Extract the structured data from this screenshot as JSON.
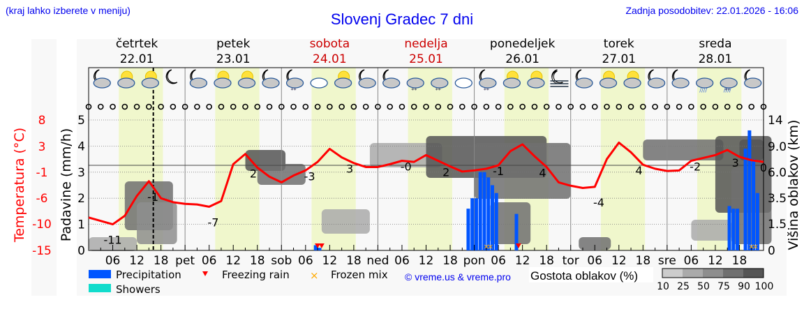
{
  "header": {
    "note": "(kraj lahko izberete v meniju)",
    "title": "Slovenj Gradec 7 dni",
    "updated": "Zadnja posodobitev: 22.01.2026 - 16:06"
  },
  "days": [
    {
      "name": "četrtek",
      "date": "22.01",
      "weekend": false,
      "short": ""
    },
    {
      "name": "petek",
      "date": "23.01",
      "weekend": false,
      "short": "pet"
    },
    {
      "name": "sobota",
      "date": "24.01",
      "weekend": true,
      "short": "sob"
    },
    {
      "name": "nedelja",
      "date": "25.01",
      "weekend": true,
      "short": "ned"
    },
    {
      "name": "ponedeljek",
      "date": "26.01",
      "weekend": false,
      "short": "pon"
    },
    {
      "name": "torek",
      "date": "27.01",
      "weekend": false,
      "short": "tor"
    },
    {
      "name": "sreda",
      "date": "28.01",
      "weekend": false,
      "short": "sre"
    }
  ],
  "hour_ticks": [
    "06",
    "12",
    "18"
  ],
  "icons": [
    "night-partly-cloudy",
    "day-partly-cloudy",
    "day-partly-cloudy",
    "night-clear",
    "night-partly-cloudy",
    "day-partly-cloudy",
    "day-partly-cloudy",
    "night-partly-cloudy",
    "night-light-snow",
    "day-cloudy",
    "day-partly-cloudy",
    "night-partly-cloudy",
    "night-partly-cloudy",
    "day-light-snow",
    "day-light-snow",
    "day-cloudy",
    "night-light-snow",
    "day-partly-cloudy",
    "day-partly-cloudy",
    "night-fog",
    "night-partly-cloudy",
    "day-partly-cloudy",
    "day-partly-cloudy",
    "night-partly-cloudy",
    "night-partly-cloudy",
    "day-rain",
    "day-rain-snow",
    "night-partly-cloudy"
  ],
  "colors": {
    "temperature": "#ff0000",
    "precipitation": "#0055ff",
    "showers": "#11dccc",
    "freezing_rain": "#ff0000",
    "frozen_mix": "#ffaa00",
    "daylight": "#f0f7cc",
    "link": "#0000ee",
    "weekend": "#cc0000"
  },
  "legend": {
    "precipitation": "Precipitation",
    "freezing_rain": "Freezing rain",
    "frozen_mix": "Frozen mix",
    "showers": "Showers",
    "copyright": "© vreme.us & vreme.pro",
    "cloud_density_title": "Gostota oblakov (%)",
    "cloud_density_scale": [
      "10",
      "25",
      "50",
      "75",
      "90",
      "100"
    ],
    "cloud_density_colors": [
      "#cccccc",
      "#aaaaaa",
      "#8e8e8e",
      "#707070",
      "#555555"
    ]
  },
  "chart_data": {
    "type": "line",
    "title": "Slovenj Gradec 7 dni",
    "x_unit": "hours since 22.01 00:00",
    "x_range": [
      0,
      168
    ],
    "current_time_marker_hour": 16.1,
    "series": [
      {
        "name": "Temperatura (°C)",
        "axis": "left-outer",
        "x": [
          0,
          3,
          6,
          9,
          12,
          15,
          18,
          21,
          24,
          27,
          30,
          33,
          36,
          39,
          42,
          45,
          48,
          51,
          54,
          57,
          60,
          63,
          66,
          69,
          72,
          75,
          78,
          81,
          84,
          87,
          90,
          93,
          96,
          99,
          102,
          105,
          108,
          111,
          114,
          117,
          120,
          123,
          126,
          129,
          132,
          135,
          138,
          141,
          144,
          147,
          150,
          153,
          156,
          159,
          162,
          165,
          168
        ],
        "values": [
          -9.2,
          -9.8,
          -10.4,
          -8.9,
          -5.4,
          -2.8,
          -5.8,
          -6.5,
          -6.8,
          -6.9,
          -7.3,
          -6.3,
          0.2,
          2.0,
          -0.4,
          -2.0,
          -3.0,
          -1.8,
          -0.9,
          0.6,
          2.9,
          1.4,
          0.4,
          -0.3,
          -0.3,
          0.2,
          0.8,
          0.6,
          1.8,
          0.8,
          -0.2,
          -1.1,
          -0.9,
          -0.6,
          0.0,
          2.5,
          3.7,
          1.6,
          -0.3,
          -3.0,
          -3.6,
          -4.0,
          -3.8,
          1.1,
          4.0,
          2.3,
          0.1,
          -0.6,
          -1.0,
          -0.9,
          0.8,
          1.3,
          1.8,
          2.7,
          1.5,
          0.9,
          0.6
        ],
        "labels": [
          {
            "hour": 6,
            "text": "-11"
          },
          {
            "hour": 16,
            "text": "-1"
          },
          {
            "hour": 31,
            "text": "-7"
          },
          {
            "hour": 41,
            "text": "2"
          },
          {
            "hour": 55,
            "text": "-3"
          },
          {
            "hour": 65,
            "text": "3"
          },
          {
            "hour": 79,
            "text": "-0"
          },
          {
            "hour": 89,
            "text": "2"
          },
          {
            "hour": 102,
            "text": "-1"
          },
          {
            "hour": 113,
            "text": "4"
          },
          {
            "hour": 127,
            "text": "-4"
          },
          {
            "hour": 137,
            "text": "4"
          },
          {
            "hour": 151,
            "text": "-2"
          },
          {
            "hour": 161,
            "text": "3"
          },
          {
            "hour": 168,
            "text": "0"
          }
        ]
      },
      {
        "name": "Padavine (mm/h)",
        "axis": "left",
        "type": "bar",
        "x": [
          56.5,
          57.5,
          94.5,
          95.5,
          96.5,
          97.5,
          98.5,
          99.5,
          100.5,
          101.5,
          106.5,
          159.5,
          160.5,
          161.5,
          163.5,
          164.5,
          165.5,
          166.5
        ],
        "values": [
          0.2,
          0.1,
          1.6,
          2.0,
          2.0,
          3.0,
          3.0,
          2.8,
          2.5,
          2.2,
          1.4,
          1.7,
          1.6,
          1.6,
          3.9,
          4.6,
          3.5,
          2.2
        ]
      }
    ],
    "markers": {
      "freezing_rain_hours": [
        57,
        58,
        107
      ],
      "frozen_mix_hours": [
        99,
        100,
        165,
        166
      ]
    },
    "left_axis": {
      "label": "Padavine (mm/h)",
      "ticks": [
        0,
        1,
        2,
        3,
        4,
        5
      ],
      "range": [
        0,
        5
      ]
    },
    "temp_axis": {
      "label": "Temperatura (°C)",
      "ticks": [
        8,
        3,
        -1,
        -6,
        -10,
        -15
      ]
    },
    "right_axis": {
      "label": "Višina oblakov (km)",
      "ticks": [
        "0",
        "1.5",
        "3.5",
        "6.0",
        "9.0",
        "14"
      ]
    },
    "xlabel": "",
    "grid": true,
    "legend_position": "bottom"
  },
  "axes": {
    "temp_label": "Temperatura (°C)",
    "precip_label": "Padavine (mm/h)",
    "cloud_label": "Višina oblakov (km)"
  }
}
